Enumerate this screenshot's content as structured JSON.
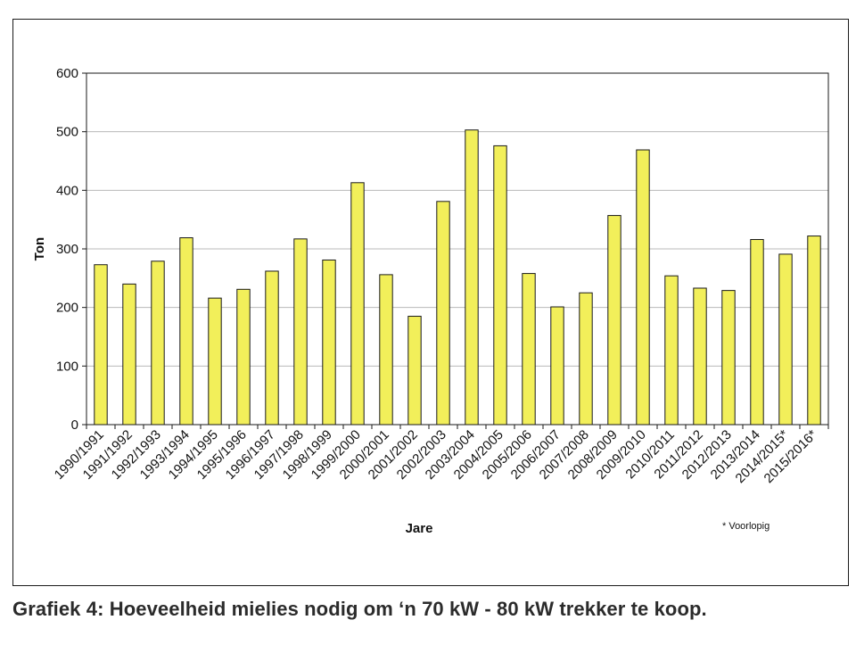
{
  "caption": "Grafiek 4: Hoeveelheid mielies nodig om ‘n 70 kW - 80 kW trekker te koop.",
  "chart_data": {
    "type": "bar",
    "title": "",
    "xlabel": "Jare",
    "ylabel": "Ton",
    "note": "* Voorlopig",
    "ylim": [
      0,
      600
    ],
    "yticks": [
      0,
      100,
      200,
      300,
      400,
      500,
      600
    ],
    "grid": true,
    "bar_color": "#f2ef5a",
    "bar_stroke": "#1a1a1a",
    "categories": [
      "1990/1991",
      "1991/1992",
      "1992/1993",
      "1993/1994",
      "1994/1995",
      "1995/1996",
      "1996/1997",
      "1997/1998",
      "1998/1999",
      "1999/2000",
      "2000/2001",
      "2001/2002",
      "2002/2003",
      "2003/2004",
      "2004/2005",
      "2005/2006",
      "2006/2007",
      "2007/2008",
      "2008/2009",
      "2009/2010",
      "2010/2011",
      "2011/2012",
      "2012/2013",
      "2013/2014",
      "2014/2015*",
      "2015/2016*"
    ],
    "values": [
      273,
      240,
      279,
      319,
      216,
      231,
      262,
      317,
      281,
      413,
      256,
      185,
      381,
      503,
      476,
      258,
      201,
      225,
      357,
      469,
      254,
      233,
      229,
      316,
      291,
      322
    ]
  }
}
